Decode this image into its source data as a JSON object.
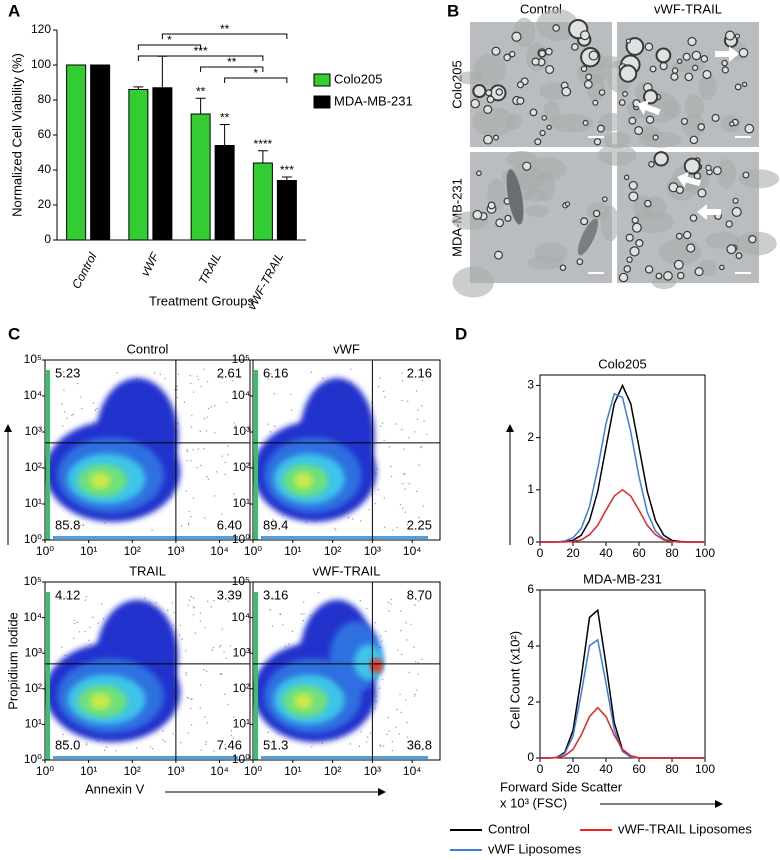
{
  "chart_data": [
    {
      "type": "bar",
      "panel": "A",
      "ylabel": "Normalized Cell Viability (%)",
      "xlabel": "Treatment Groups",
      "categories": [
        "Control",
        "vWF",
        "TRAIL",
        "vWF-TRAIL"
      ],
      "series": [
        {
          "name": "Colo205",
          "color": "#33cc33",
          "values": [
            100,
            86,
            72,
            44
          ],
          "errors": [
            0,
            1.5,
            9,
            7
          ],
          "stars": [
            null,
            null,
            "**",
            "****"
          ]
        },
        {
          "name": "MDA-MB-231",
          "color": "#000000",
          "values": [
            100,
            87,
            54,
            34
          ],
          "errors": [
            0,
            18,
            12,
            2
          ],
          "stars": [
            null,
            null,
            "**",
            "***"
          ]
        }
      ],
      "ylim": [
        0,
        120
      ],
      "yticks": [
        0,
        20,
        40,
        60,
        80,
        100,
        120
      ],
      "comparisons": [
        {
          "label": "**",
          "from": [
            1,
            1
          ],
          "to": [
            3,
            1
          ]
        },
        {
          "label": "*",
          "from": [
            1,
            0
          ],
          "to": [
            2,
            0
          ]
        },
        {
          "label": "***",
          "from": [
            1,
            0
          ],
          "to": [
            3,
            0
          ]
        },
        {
          "label": "**",
          "from": [
            2,
            0
          ],
          "to": [
            3,
            0
          ]
        },
        {
          "label": "*",
          "from": [
            2,
            1
          ],
          "to": [
            3,
            1
          ]
        }
      ]
    },
    {
      "type": "density",
      "panel": "C",
      "title": "Control",
      "values": [
        5.23,
        2.61,
        85.8,
        6.4
      ],
      "value_labels": [
        "5.23",
        "2.61",
        "85.8",
        "6.40"
      ],
      "gates": {
        "x": 1000,
        "y": 500
      },
      "log": true,
      "xlim": [
        1,
        50000
      ],
      "ylim": [
        1,
        100000
      ],
      "xticks": [
        {
          "value": 1,
          "label": "10⁰"
        },
        {
          "value": 10,
          "label": "10¹"
        },
        {
          "value": 100,
          "label": "10²"
        },
        {
          "value": 1000,
          "label": "10³"
        },
        {
          "value": 10000,
          "label": "10⁴"
        }
      ],
      "yticks": [
        {
          "value": 1,
          "label": "10⁰"
        },
        {
          "value": 10,
          "label": "10¹"
        },
        {
          "value": 100,
          "label": "10²"
        },
        {
          "value": 1000,
          "label": "10³"
        },
        {
          "value": 10000,
          "label": "10⁴"
        },
        {
          "value": 100000,
          "label": "10⁵"
        }
      ]
    },
    {
      "type": "density",
      "title": "vWF",
      "values": [
        6.16,
        2.16,
        89.4,
        2.25
      ],
      "value_labels": [
        "6.16",
        "2.16",
        "89.4",
        "2.25"
      ],
      "gates": {
        "x": 1000,
        "y": 500
      },
      "log": true,
      "xlim": [
        1,
        50000
      ],
      "ylim": [
        1,
        100000
      ],
      "xticks": [
        {
          "value": 1,
          "label": "10⁰"
        },
        {
          "value": 10,
          "label": "10¹"
        },
        {
          "value": 100,
          "label": "10²"
        },
        {
          "value": 1000,
          "label": "10³"
        },
        {
          "value": 10000,
          "label": "10⁴"
        }
      ],
      "yticks": [
        {
          "value": 1,
          "label": "10⁰"
        },
        {
          "value": 10,
          "label": "10¹"
        },
        {
          "value": 100,
          "label": "10²"
        },
        {
          "value": 1000,
          "label": "10³"
        },
        {
          "value": 10000,
          "label": "10⁴"
        },
        {
          "value": 100000,
          "label": "10⁵"
        }
      ]
    },
    {
      "type": "density",
      "title": "TRAIL",
      "values": [
        4.12,
        3.39,
        85.0,
        7.46
      ],
      "value_labels": [
        "4.12",
        "3.39",
        "85.0",
        "7.46"
      ],
      "xlabel": "Annexin V",
      "ylabel": "Propidium Iodide",
      "gates": {
        "x": 1000,
        "y": 500
      },
      "log": true,
      "xlim": [
        1,
        50000
      ],
      "ylim": [
        1,
        100000
      ],
      "xticks": [
        {
          "value": 1,
          "label": "10⁰"
        },
        {
          "value": 10,
          "label": "10¹"
        },
        {
          "value": 100,
          "label": "10²"
        },
        {
          "value": 1000,
          "label": "10³"
        },
        {
          "value": 10000,
          "label": "10⁴"
        }
      ],
      "yticks": [
        {
          "value": 1,
          "label": "10⁰"
        },
        {
          "value": 10,
          "label": "10¹"
        },
        {
          "value": 100,
          "label": "10²"
        },
        {
          "value": 1000,
          "label": "10³"
        },
        {
          "value": 10000,
          "label": "10⁴"
        },
        {
          "value": 100000,
          "label": "10⁵"
        }
      ]
    },
    {
      "type": "density",
      "title": "vWF-TRAIL",
      "values": [
        3.16,
        8.7,
        51.3,
        36.8
      ],
      "value_labels": [
        "3.16",
        "8.70",
        "51.3",
        "36.8"
      ],
      "gates": {
        "x": 1000,
        "y": 500
      },
      "log": true,
      "xlim": [
        1,
        50000
      ],
      "ylim": [
        1,
        100000
      ],
      "xticks": [
        {
          "value": 1,
          "label": "10⁰"
        },
        {
          "value": 10,
          "label": "10¹"
        },
        {
          "value": 100,
          "label": "10²"
        },
        {
          "value": 1000,
          "label": "10³"
        },
        {
          "value": 10000,
          "label": "10⁴"
        }
      ],
      "yticks": [
        {
          "value": 1,
          "label": "10⁰"
        },
        {
          "value": 10,
          "label": "10¹"
        },
        {
          "value": 100,
          "label": "10²"
        },
        {
          "value": 1000,
          "label": "10³"
        },
        {
          "value": 10000,
          "label": "10⁴"
        },
        {
          "value": 100000,
          "label": "10⁵"
        }
      ]
    },
    {
      "type": "line",
      "panel": "D",
      "title": "Colo205",
      "x": [
        0,
        5,
        10,
        15,
        20,
        25,
        30,
        35,
        40,
        45,
        50,
        55,
        60,
        65,
        70,
        75,
        80,
        85,
        90,
        95,
        100
      ],
      "series": [
        {
          "color": "#000000",
          "values": [
            0,
            0,
            0,
            0.01,
            0.03,
            0.13,
            0.41,
            0.97,
            1.82,
            2.65,
            3.0,
            2.65,
            1.82,
            0.97,
            0.41,
            0.13,
            0.03,
            0.01,
            0,
            0,
            0
          ]
        },
        {
          "color": "#3b7de0",
          "values": [
            0,
            0,
            0,
            0.02,
            0.08,
            0.26,
            0.68,
            1.41,
            2.27,
            2.84,
            2.77,
            2.11,
            1.25,
            0.57,
            0.21,
            0.06,
            0.01,
            0,
            0,
            0,
            0
          ]
        },
        {
          "color": "#ee2222",
          "values": [
            0,
            0,
            0,
            0,
            0.01,
            0.04,
            0.14,
            0.32,
            0.61,
            0.88,
            1.0,
            0.88,
            0.61,
            0.32,
            0.14,
            0.04,
            0.01,
            0,
            0,
            0,
            0
          ]
        }
      ],
      "xlim": [
        0,
        100
      ],
      "xticks": [
        0,
        20,
        40,
        60,
        80,
        100
      ],
      "ylim": [
        0,
        3.2
      ],
      "yticks": [
        0,
        1,
        2,
        3
      ]
    },
    {
      "type": "line",
      "title": "MDA-MB-231",
      "ylabel": "Cell Count (x10²)",
      "xlabel": [
        "Forward Side Scatter",
        "x 10³ (FSC)"
      ],
      "legend": true,
      "x": [
        0,
        5,
        10,
        15,
        20,
        25,
        30,
        35,
        40,
        45,
        50,
        55,
        60,
        65,
        70,
        75,
        80,
        85,
        90,
        95,
        100
      ],
      "series": [
        {
          "name": "Control",
          "color": "#000000",
          "values": [
            0,
            0,
            0.02,
            0.2,
            0.98,
            2.87,
            5.02,
            5.28,
            3.34,
            1.26,
            0.29,
            0.04,
            0,
            0,
            0,
            0,
            0,
            0,
            0,
            0,
            0
          ]
        },
        {
          "name": "vWF Liposomes",
          "color": "#3b7de0",
          "values": [
            0,
            0,
            0.02,
            0.16,
            0.78,
            2.3,
            4.01,
            4.22,
            2.67,
            1.01,
            0.23,
            0.03,
            0,
            0,
            0,
            0,
            0,
            0,
            0,
            0,
            0
          ]
        },
        {
          "name": "vWF-TRAIL Liposomes",
          "color": "#ee2222",
          "values": [
            0,
            0,
            0.01,
            0.08,
            0.31,
            0.82,
            1.48,
            1.8,
            1.48,
            0.82,
            0.31,
            0.08,
            0.01,
            0,
            0,
            0,
            0,
            0,
            0,
            0,
            0
          ]
        }
      ],
      "xlim": [
        0,
        100
      ],
      "xticks": [
        0,
        20,
        40,
        60,
        80,
        100
      ],
      "ylim": [
        0,
        6
      ],
      "yticks": [
        0,
        2,
        4,
        6
      ]
    }
  ],
  "micrographs": {
    "panel": "B",
    "columns": [
      "Control",
      "vWF-TRAIL"
    ],
    "rows": [
      "Colo205",
      "MDA-MB-231"
    ]
  }
}
